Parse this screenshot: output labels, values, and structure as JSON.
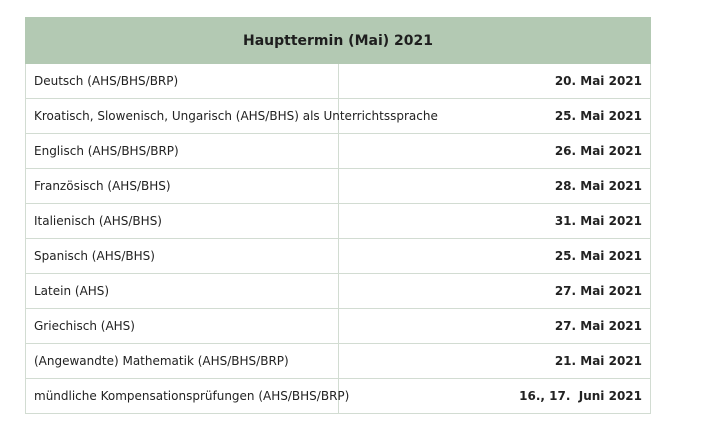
{
  "table": {
    "title": "Haupttermin (Mai) 2021",
    "rows": [
      {
        "subject": "Deutsch (AHS/BHS/BRP)",
        "date": "20. Mai 2021"
      },
      {
        "subject": "Kroatisch, Slowenisch, Ungarisch (AHS/BHS) als Unterrichtssprache",
        "date": "25. Mai 2021"
      },
      {
        "subject": "Englisch (AHS/BHS/BRP)",
        "date": "26. Mai 2021"
      },
      {
        "subject": "Französisch (AHS/BHS)",
        "date": "28. Mai 2021"
      },
      {
        "subject": "Italienisch (AHS/BHS)",
        "date": "31. Mai 2021"
      },
      {
        "subject": "Spanisch (AHS/BHS)",
        "date": "25. Mai 2021"
      },
      {
        "subject": "Latein (AHS)",
        "date": "27. Mai 2021"
      },
      {
        "subject": "Griechisch (AHS)",
        "date": "27. Mai 2021"
      },
      {
        "subject": "(Angewandte) Mathematik (AHS/BHS/BRP)",
        "date": "21. Mai 2021"
      },
      {
        "subject": "mündliche Kompensationsprüfungen (AHS/BHS/BRP)",
        "date": "16., 17.  Juni 2021"
      }
    ]
  },
  "colors": {
    "header_background": "#b3c9b3",
    "border": "#d2dcd2"
  }
}
